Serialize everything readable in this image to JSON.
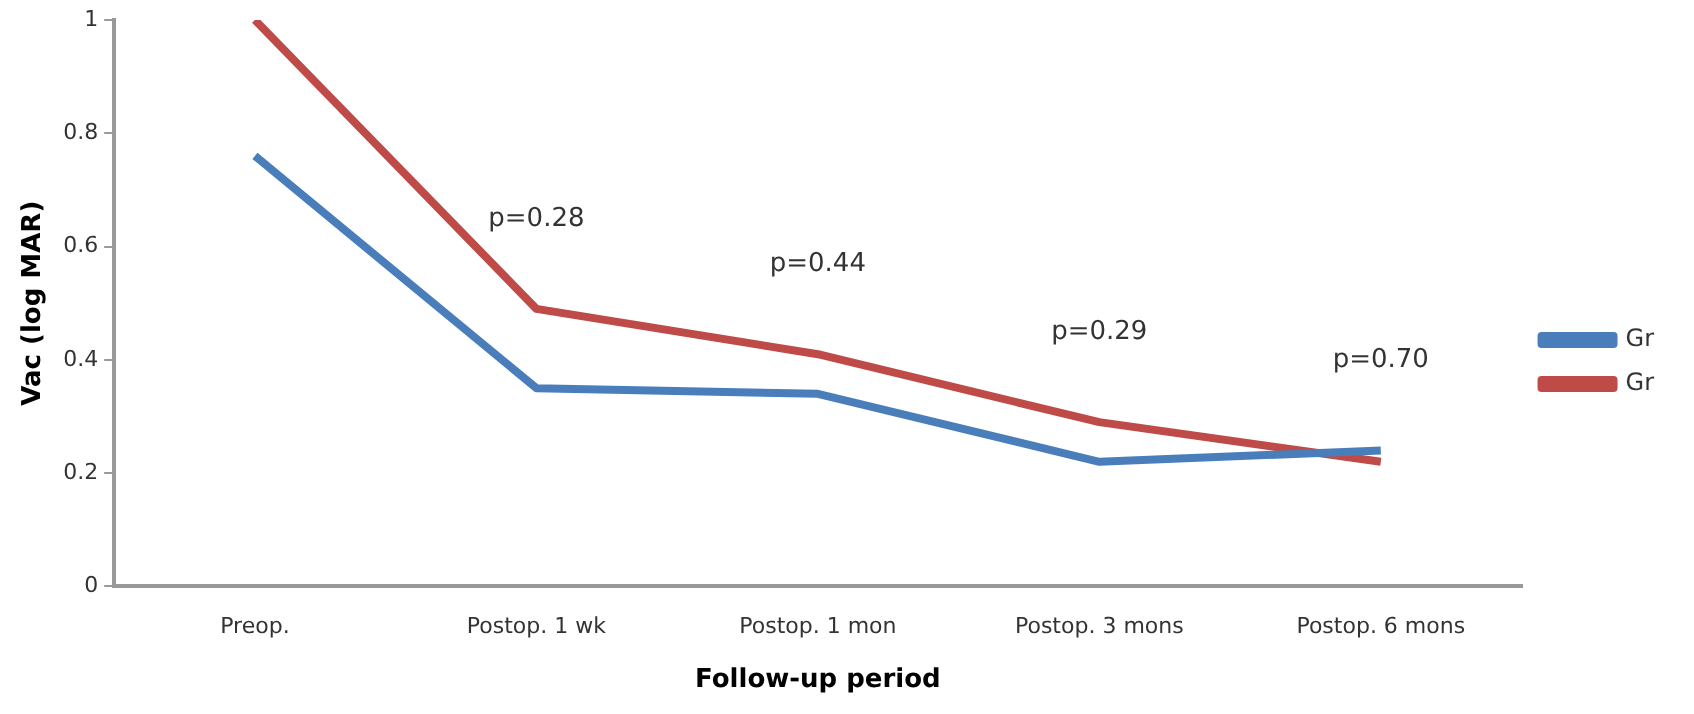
{
  "chart_data": {
    "type": "line",
    "xlabel": "Follow-up period",
    "ylabel": "Vac (log MAR)",
    "categories": [
      "Preop.",
      "Postop. 1 wk",
      "Postop. 1 mon",
      "Postop. 3 mons",
      "Postop. 6 mons"
    ],
    "series": [
      {
        "name": "Gr",
        "color": "#4a7ebb",
        "values": [
          0.76,
          0.35,
          0.34,
          0.22,
          0.24
        ]
      },
      {
        "name": "Gr",
        "color": "#be4b48",
        "values": [
          1.0,
          0.49,
          0.41,
          0.29,
          0.22
        ]
      }
    ],
    "ylim": [
      0,
      1
    ],
    "yticks": [
      0,
      0.2,
      0.4,
      0.6,
      0.8,
      1
    ],
    "grid": false,
    "legend": "right",
    "marker": "none",
    "line_style": "solid",
    "annotations": [
      "p=0.28",
      "p=0.44",
      "p=0.29",
      "p=0.70"
    ]
  }
}
